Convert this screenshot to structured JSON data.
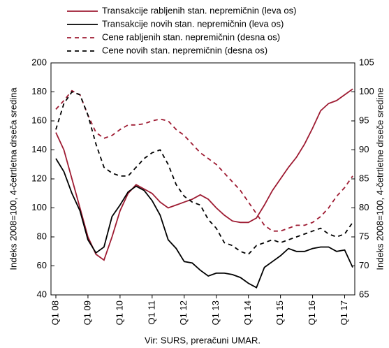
{
  "chart_data": {
    "type": "line",
    "y_label": "Indeks 2008=100, 4-četrtletna drseča sredina",
    "y2_label": "Indeks 2008=100, 4-četrtletne drseče sredine",
    "source": "Vir: SURS, preračuni UMAR.",
    "categories": [
      "Q1 08",
      null,
      null,
      null,
      "Q1 09",
      null,
      null,
      null,
      "Q1 10",
      null,
      null,
      null,
      "Q1 11",
      null,
      null,
      null,
      "Q1 12",
      null,
      null,
      null,
      "Q1 13",
      null,
      null,
      null,
      "Q1 14",
      null,
      null,
      null,
      "Q1 15",
      null,
      null,
      null,
      "Q1 16",
      null,
      null,
      null,
      "Q1 17",
      null
    ],
    "ylim": [
      40,
      200
    ],
    "yticks": [
      40,
      60,
      80,
      100,
      120,
      140,
      160,
      180,
      200
    ],
    "y2lim": [
      65,
      105
    ],
    "y2ticks": [
      65,
      70,
      75,
      80,
      85,
      90,
      95,
      100,
      105
    ],
    "series": [
      {
        "name": "Transakcije rabljenih stan. nepremičnin (leva os)",
        "color": "#9e1b32",
        "line_style": "solid",
        "values": [
          152,
          140,
          120,
          100,
          80,
          68,
          64,
          80,
          98,
          110,
          116,
          113,
          110,
          104,
          100,
          102,
          104,
          106,
          109,
          106,
          100,
          95,
          91,
          90,
          90,
          93,
          102,
          112,
          120,
          128,
          135,
          144,
          155,
          167,
          172,
          174,
          178,
          182
        ]
      },
      {
        "name": "Transakcije novih stan. nepremičnin (leva os)",
        "color": "#000000",
        "line_style": "solid",
        "values": [
          134,
          125,
          110,
          98,
          78,
          69,
          73,
          94,
          102,
          111,
          115,
          112,
          105,
          95,
          78,
          72,
          63,
          62,
          57,
          53,
          55,
          55,
          54,
          52,
          48,
          45,
          59,
          63,
          67,
          72,
          70,
          70,
          72,
          73,
          73,
          70,
          71,
          59
        ]
      },
      {
        "name": "Cene rabljenih stan. nepremičnin (desna os)",
        "color": "#9e1b32",
        "line_style": "dashed",
        "axis": "y2",
        "values": [
          97,
          98.5,
          100.2,
          99.5,
          96,
          93,
          92,
          92.5,
          93.5,
          94.3,
          94.3,
          94.5,
          95,
          95.3,
          95,
          93.5,
          92.5,
          91,
          89.5,
          88.5,
          87.5,
          86,
          84.5,
          83,
          81,
          79,
          77,
          76,
          76,
          76.5,
          77,
          77,
          77.5,
          78.5,
          80,
          82,
          83.5,
          85.5
        ]
      },
      {
        "name": "Cene novih stan. nepremičnin (desna os)",
        "color": "#000000",
        "line_style": "dashed",
        "axis": "y2",
        "values": [
          93.5,
          98,
          100,
          99.5,
          96,
          91,
          87,
          86,
          85.5,
          85.5,
          87,
          88.5,
          89.5,
          90,
          87.5,
          84,
          82,
          81,
          80.5,
          78,
          76.5,
          74,
          73.5,
          72.5,
          72,
          73.5,
          74,
          74.5,
          74,
          74.5,
          75,
          75.5,
          76,
          76.5,
          75.5,
          75,
          75.5,
          77.5
        ]
      }
    ]
  }
}
